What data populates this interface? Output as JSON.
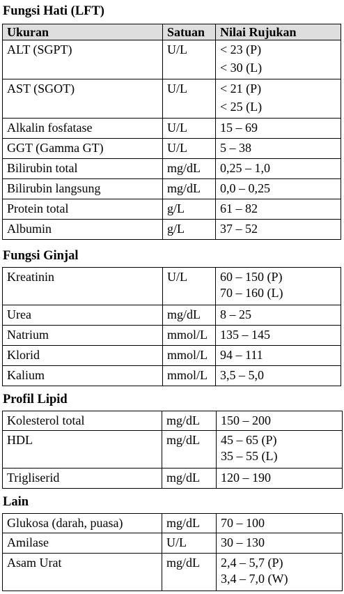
{
  "sections": [
    {
      "title": "Fungsi Hati (LFT)",
      "header": [
        "Ukuran",
        "Satuan",
        "Nilai Rujukan"
      ],
      "rows": [
        {
          "name": "ALT (SGPT)",
          "unit": "U/L",
          "values": [
            "< 23 (P)",
            "< 30 (L)"
          ]
        },
        {
          "name": "AST (SGOT)",
          "unit": "U/L",
          "values": [
            "< 21 (P)",
            "< 25 (L)"
          ]
        },
        {
          "name": "Alkalin fosfatase",
          "unit": "U/L",
          "values": [
            "15 – 69"
          ]
        },
        {
          "name": "GGT (Gamma GT)",
          "unit": "U/L",
          "values": [
            "5 – 38"
          ]
        },
        {
          "name": "Bilirubin total",
          "unit": "mg/dL",
          "values": [
            "0,25 – 1,0"
          ]
        },
        {
          "name": "Bilirubin langsung",
          "unit": "mg/dL",
          "values": [
            "0,0 – 0,25"
          ]
        },
        {
          "name": "Protein total",
          "unit": "g/L",
          "values": [
            "61 – 82"
          ]
        },
        {
          "name": "Albumin",
          "unit": "g/L",
          "values": [
            "37 – 52"
          ]
        }
      ]
    },
    {
      "title": "Fungsi Ginjal",
      "rows": [
        {
          "name": "Kreatinin",
          "unit": "U/L",
          "values": [
            "60 – 150 (P)",
            "70 – 160 (L)"
          ]
        },
        {
          "name": "Urea",
          "unit": "mg/dL",
          "values": [
            "8 – 25"
          ]
        },
        {
          "name": "Natrium",
          "unit": "mmol/L",
          "values": [
            "135 – 145"
          ]
        },
        {
          "name": "Klorid",
          "unit": "mmol/L",
          "values": [
            "94 – 111"
          ]
        },
        {
          "name": "Kalium",
          "unit": "mmol/L",
          "values": [
            "3,5 – 5,0"
          ]
        }
      ]
    },
    {
      "title": "Profil Lipid",
      "rows": [
        {
          "name": "Kolesterol total",
          "unit": "mg/dL",
          "values": [
            "150 – 200"
          ]
        },
        {
          "name": "HDL",
          "unit": "mg/dL",
          "values": [
            "45 – 65 (P)",
            "35 – 55 (L)"
          ]
        },
        {
          "name": "Trigliserid",
          "unit": "mg/dL",
          "values": [
            "120 – 190"
          ]
        }
      ]
    },
    {
      "title": "Lain",
      "rows": [
        {
          "name": "Glukosa (darah, puasa)",
          "unit": "mg/dL",
          "values": [
            "70 – 100"
          ]
        },
        {
          "name": "Amilase",
          "unit": "U/L",
          "values": [
            "30 – 130"
          ]
        },
        {
          "name": "Asam Urat",
          "unit": "mg/dL",
          "values": [
            "2,4 – 5,7 (P)",
            "3,4 – 7,0 (W)"
          ]
        }
      ]
    }
  ]
}
